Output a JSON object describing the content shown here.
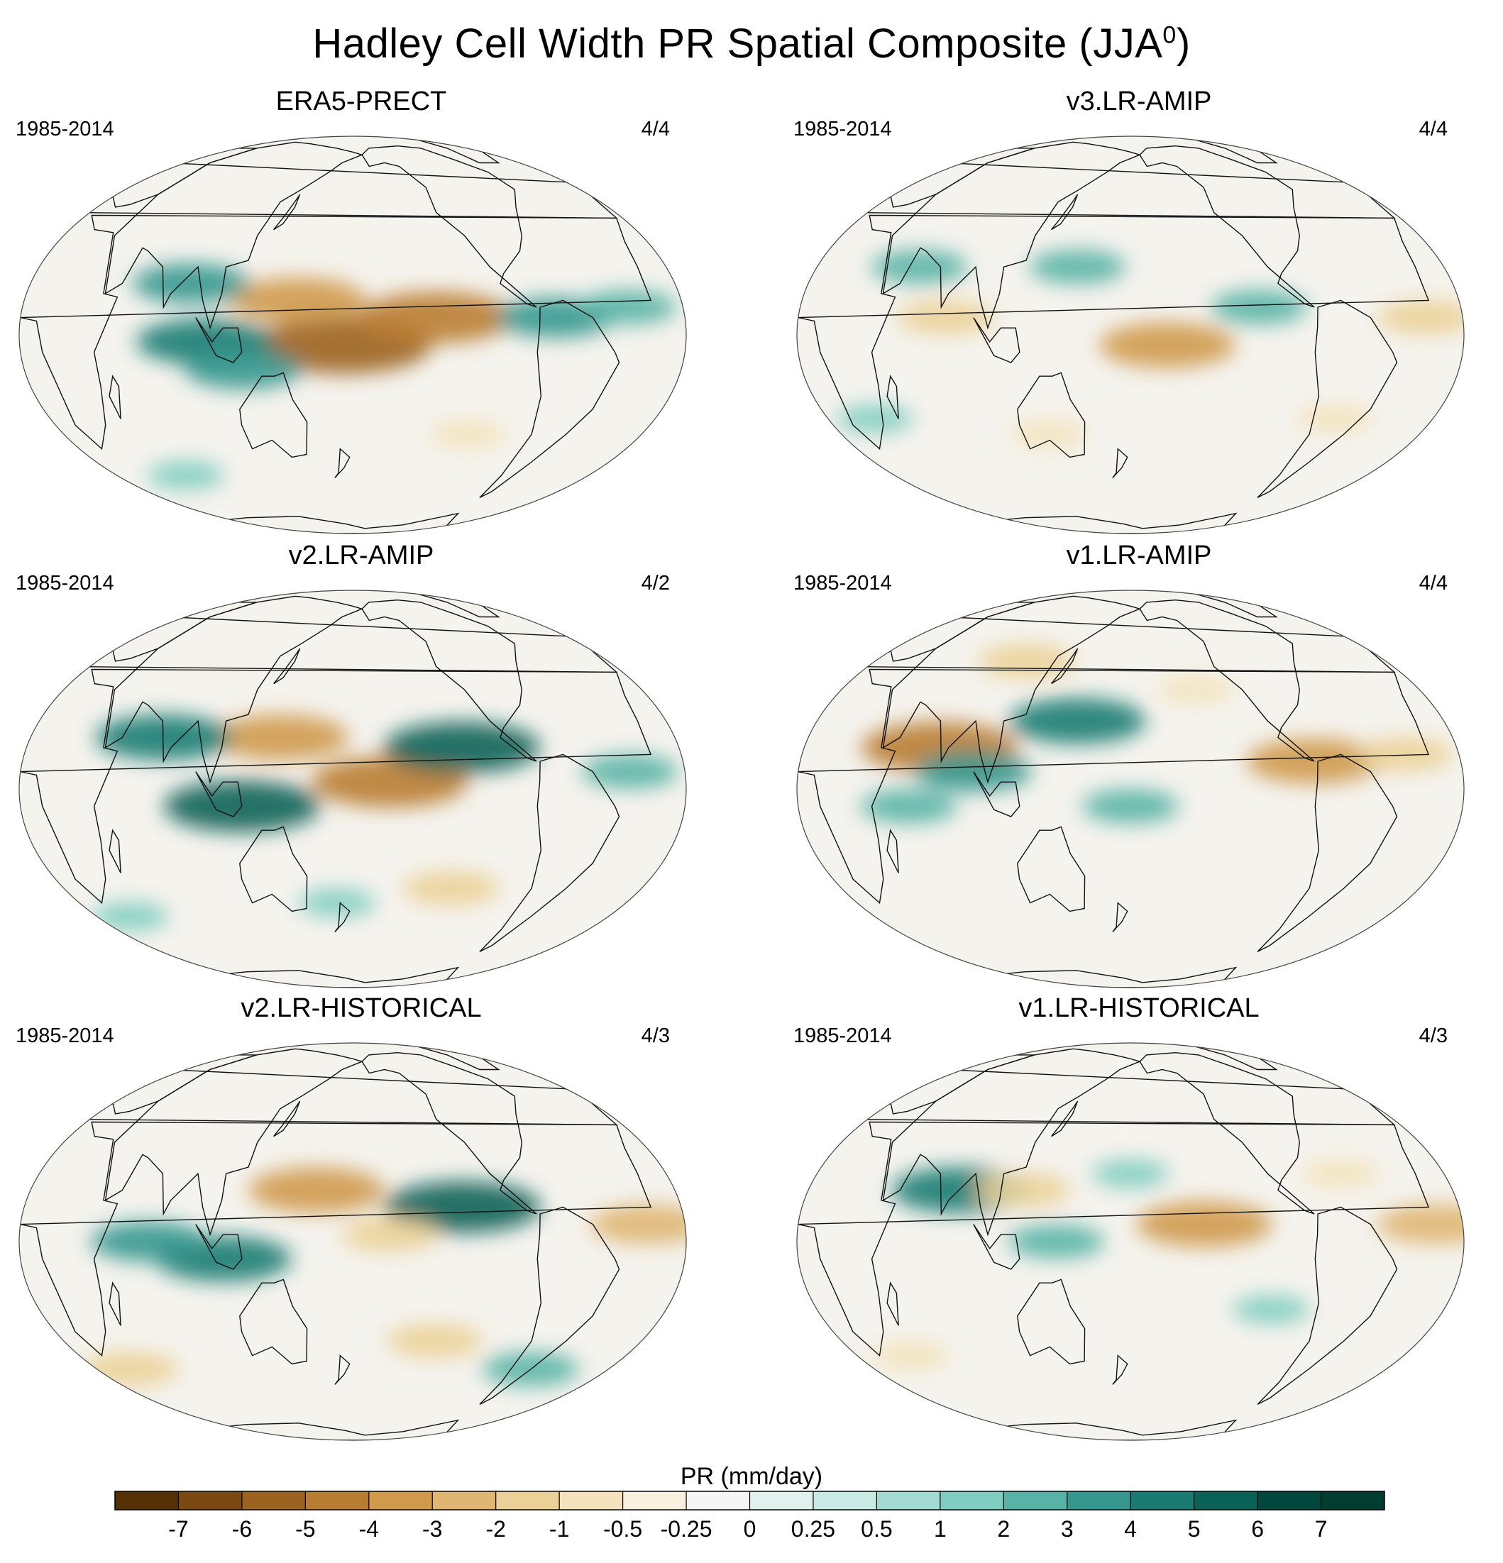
{
  "title": {
    "main": "Hadley Cell Width PR Spatial Composite (JJA",
    "superscript": "0",
    "suffix": ")"
  },
  "panels": [
    {
      "title": "ERA5-PRECT",
      "period": "1985-2014",
      "count": "4/4",
      "anomalies": [
        {
          "lon": 175,
          "lat": -3,
          "value": -6
        },
        {
          "lon": 150,
          "lat": 10,
          "value": -4
        },
        {
          "lon": 225,
          "lat": 5,
          "value": -5
        },
        {
          "lon": 90,
          "lat": 15,
          "value": 3
        },
        {
          "lon": 100,
          "lat": -2,
          "value": 4
        },
        {
          "lon": 290,
          "lat": 5,
          "value": 3
        },
        {
          "lon": 330,
          "lat": 8,
          "value": 2
        },
        {
          "lon": 250,
          "lat": -30,
          "value": -1
        },
        {
          "lon": 60,
          "lat": -45,
          "value": 1
        },
        {
          "lon": 120,
          "lat": -10,
          "value": 3
        }
      ]
    },
    {
      "title": "v3.LR-AMIP",
      "period": "1985-2014",
      "count": "4/4",
      "anomalies": [
        {
          "lon": 200,
          "lat": -3,
          "value": -4
        },
        {
          "lon": 150,
          "lat": 20,
          "value": 2
        },
        {
          "lon": 80,
          "lat": 5,
          "value": -2
        },
        {
          "lon": 250,
          "lat": 8,
          "value": 2
        },
        {
          "lon": 340,
          "lat": 5,
          "value": -2
        },
        {
          "lon": 300,
          "lat": -25,
          "value": -1
        },
        {
          "lon": 130,
          "lat": -30,
          "value": -1
        },
        {
          "lon": 30,
          "lat": -25,
          "value": 1
        },
        {
          "lon": 60,
          "lat": 20,
          "value": 2
        }
      ]
    },
    {
      "title": "v2.LR-AMIP",
      "period": "1985-2014",
      "count": "4/2",
      "anomalies": [
        {
          "lon": 200,
          "lat": 2,
          "value": -5
        },
        {
          "lon": 140,
          "lat": 15,
          "value": -4
        },
        {
          "lon": 120,
          "lat": -5,
          "value": 5
        },
        {
          "lon": 240,
          "lat": 12,
          "value": 5
        },
        {
          "lon": 75,
          "lat": 15,
          "value": 4
        },
        {
          "lon": 240,
          "lat": -30,
          "value": -2
        },
        {
          "lon": 330,
          "lat": 5,
          "value": 2
        },
        {
          "lon": 170,
          "lat": -35,
          "value": 1
        },
        {
          "lon": 30,
          "lat": -40,
          "value": 1
        }
      ]
    },
    {
      "title": "v1.LR-AMIP",
      "period": "1985-2014",
      "count": "4/4",
      "anomalies": [
        {
          "lon": 75,
          "lat": 12,
          "value": -5
        },
        {
          "lon": 150,
          "lat": 20,
          "value": 4
        },
        {
          "lon": 95,
          "lat": 5,
          "value": 3
        },
        {
          "lon": 180,
          "lat": -5,
          "value": 2
        },
        {
          "lon": 280,
          "lat": 8,
          "value": -4
        },
        {
          "lon": 330,
          "lat": 10,
          "value": -2
        },
        {
          "lon": 60,
          "lat": -5,
          "value": 2
        },
        {
          "lon": 110,
          "lat": 40,
          "value": -2
        },
        {
          "lon": 220,
          "lat": 30,
          "value": -1
        }
      ]
    },
    {
      "title": "v2.LR-HISTORICAL",
      "period": "1985-2014",
      "count": "4/3",
      "anomalies": [
        {
          "lon": 160,
          "lat": 15,
          "value": -4
        },
        {
          "lon": 110,
          "lat": -5,
          "value": 4
        },
        {
          "lon": 240,
          "lat": 10,
          "value": 5
        },
        {
          "lon": 200,
          "lat": 2,
          "value": -2
        },
        {
          "lon": 340,
          "lat": 5,
          "value": -3
        },
        {
          "lon": 70,
          "lat": 0,
          "value": 3
        },
        {
          "lon": 30,
          "lat": -40,
          "value": -2
        },
        {
          "lon": 230,
          "lat": -30,
          "value": -2
        },
        {
          "lon": 300,
          "lat": -40,
          "value": 2
        }
      ]
    },
    {
      "title": "v1.LR-HISTORICAL",
      "period": "1985-2014",
      "count": "4/3",
      "anomalies": [
        {
          "lon": 220,
          "lat": 5,
          "value": -4
        },
        {
          "lon": 85,
          "lat": 15,
          "value": 4
        },
        {
          "lon": 140,
          "lat": 0,
          "value": 2
        },
        {
          "lon": 345,
          "lat": 5,
          "value": -3
        },
        {
          "lon": 120,
          "lat": 15,
          "value": -2
        },
        {
          "lon": 260,
          "lat": -20,
          "value": 1
        },
        {
          "lon": 40,
          "lat": -35,
          "value": -1
        },
        {
          "lon": 180,
          "lat": 20,
          "value": 1
        },
        {
          "lon": 300,
          "lat": 20,
          "value": -1
        }
      ]
    }
  ],
  "colorbar": {
    "label": "PR (mm/day)",
    "ticks": [
      "-7",
      "-6",
      "-5",
      "-4",
      "-3",
      "-2",
      "-1",
      "-0.5",
      "-0.25",
      "0",
      "0.25",
      "0.5",
      "1",
      "2",
      "3",
      "4",
      "5",
      "6",
      "7"
    ],
    "colors": [
      "#543005",
      "#7a4a12",
      "#9c6220",
      "#b97d31",
      "#cf9a4c",
      "#dfb672",
      "#ebd097",
      "#f4e3bd",
      "#f8efdf",
      "#f5f5f5",
      "#e1f1ee",
      "#c7eae5",
      "#a3dbd2",
      "#7fcdc0",
      "#57b3a5",
      "#35978f",
      "#1b7b72",
      "#0a6257",
      "#01473d",
      "#003c30"
    ]
  },
  "symbols": {
    "coastlines": "coastline-outline"
  }
}
